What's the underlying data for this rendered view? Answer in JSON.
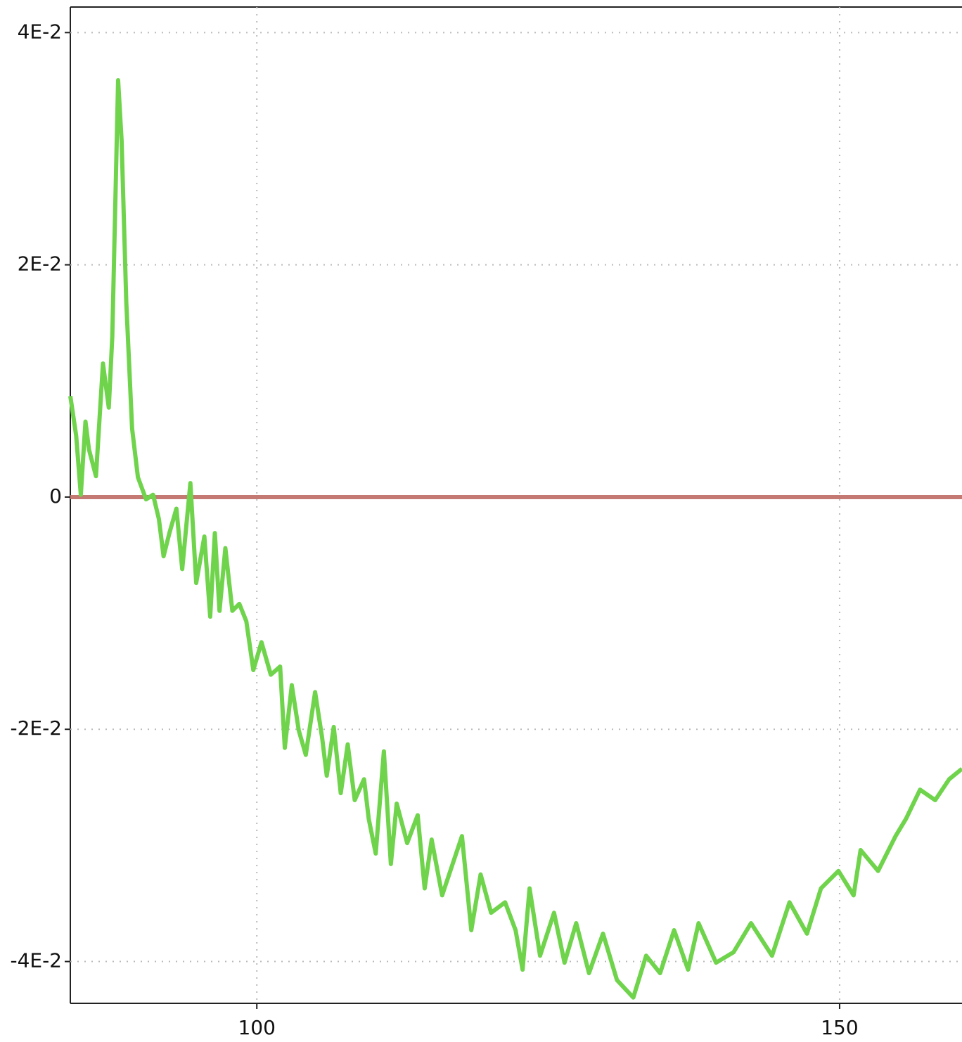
{
  "chart_data": {
    "type": "line",
    "xlim": [
      84,
      160.5
    ],
    "ylim": [
      -0.0436,
      0.0422
    ],
    "xticks": [
      100,
      150
    ],
    "yticks": [
      {
        "value": 0.04,
        "label": "4E-2"
      },
      {
        "value": 0.02,
        "label": "2E-2"
      },
      0,
      {
        "value": -0.02,
        "label": "-2E-2"
      },
      {
        "value": -0.04,
        "label": "-4E-2"
      }
    ],
    "grid": true,
    "series": [
      {
        "color": "#6fd44c",
        "x": [
          84,
          84.5,
          84.9,
          85.3,
          85.6,
          86.2,
          86.8,
          87.3,
          87.6,
          88.1,
          88.4,
          88.8,
          89.3,
          89.8,
          90.5,
          91.1,
          91.6,
          92.0,
          92.5,
          93.1,
          93.6,
          94.3,
          94.8,
          95.5,
          96.0,
          96.4,
          96.8,
          97.3,
          97.9,
          98.5,
          99.1,
          99.7,
          100.4,
          101.2,
          102.0,
          102.4,
          103.0,
          103.6,
          104.2,
          105.0,
          105.6,
          106.0,
          106.6,
          107.2,
          107.8,
          108.4,
          109.2,
          109.6,
          110.2,
          110.9,
          111.5,
          112.0,
          112.9,
          113.8,
          114.4,
          115.0,
          115.9,
          116.8,
          117.6,
          118.4,
          119.2,
          120.1,
          121.3,
          122.2,
          122.8,
          123.4,
          124.3,
          125.5,
          126.4,
          127.4,
          128.5,
          129.7,
          130.9,
          132.3,
          133.4,
          134.6,
          135.8,
          137.0,
          137.9,
          139.4,
          140.9,
          142.4,
          144.2,
          145.7,
          147.2,
          148.4,
          149.9,
          151.2,
          151.8,
          153.3,
          154.8,
          155.7,
          156.9,
          158.2,
          159.4,
          160.5
        ],
        "values": [
          0.0087,
          0.0053,
          0.0002,
          0.0065,
          0.0041,
          0.0018,
          0.0115,
          0.0077,
          0.0138,
          0.0359,
          0.0307,
          0.0168,
          0.0059,
          0.0017,
          -0.0002,
          0.0002,
          -0.0019,
          -0.0051,
          -0.0031,
          -0.001,
          -0.0062,
          0.0012,
          -0.0074,
          -0.0034,
          -0.0103,
          -0.0031,
          -0.0098,
          -0.0044,
          -0.0098,
          -0.0092,
          -0.0107,
          -0.0149,
          -0.0125,
          -0.0153,
          -0.0146,
          -0.0216,
          -0.0162,
          -0.0201,
          -0.0222,
          -0.0168,
          -0.0207,
          -0.024,
          -0.0198,
          -0.0255,
          -0.0213,
          -0.0261,
          -0.0243,
          -0.0277,
          -0.0307,
          -0.0219,
          -0.0316,
          -0.0264,
          -0.0298,
          -0.0274,
          -0.0337,
          -0.0295,
          -0.0343,
          -0.0316,
          -0.0292,
          -0.0373,
          -0.0325,
          -0.0358,
          -0.0349,
          -0.0373,
          -0.0407,
          -0.0337,
          -0.0395,
          -0.0358,
          -0.0401,
          -0.0367,
          -0.041,
          -0.0376,
          -0.0416,
          -0.0431,
          -0.0395,
          -0.041,
          -0.0373,
          -0.0407,
          -0.0367,
          -0.0401,
          -0.0392,
          -0.0367,
          -0.0395,
          -0.0349,
          -0.0376,
          -0.0337,
          -0.0322,
          -0.0343,
          -0.0304,
          -0.0322,
          -0.0292,
          -0.0277,
          -0.0252,
          -0.0261,
          -0.0243,
          -0.0234
        ]
      },
      {
        "color": "#c47a72",
        "x": [
          84,
          160.5
        ],
        "values": [
          0,
          0
        ]
      }
    ]
  }
}
